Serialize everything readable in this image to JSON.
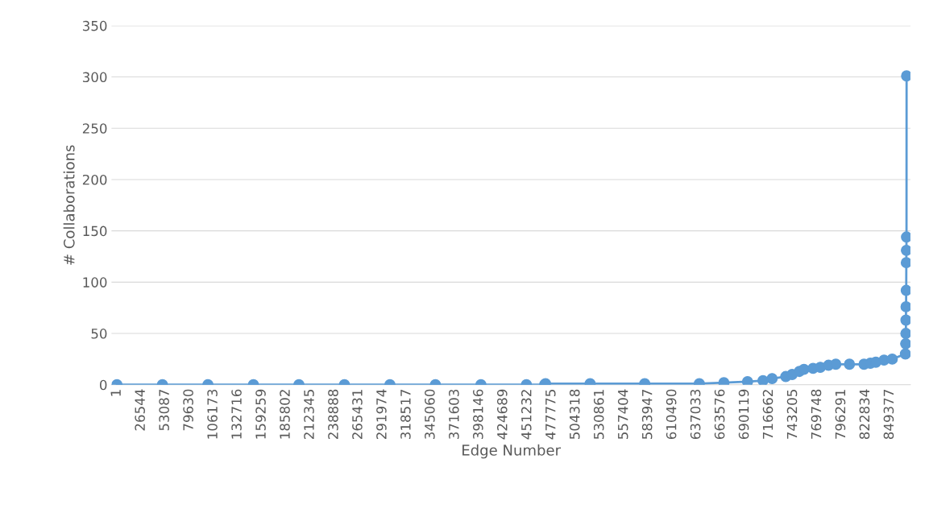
{
  "chart_data": {
    "type": "line",
    "xlabel": "Edge Number",
    "ylabel": "# Collaborations",
    "xlim": [
      -6000,
      872000
    ],
    "ylim": [
      0,
      350
    ],
    "yticks": [
      0,
      50,
      100,
      150,
      200,
      250,
      300,
      350
    ],
    "xticks": [
      1,
      26544,
      53087,
      79630,
      106173,
      132716,
      159259,
      185802,
      212345,
      238888,
      265431,
      291974,
      318517,
      345060,
      371603,
      398146,
      424689,
      451232,
      477775,
      504318,
      530861,
      557404,
      583947,
      610490,
      637033,
      663576,
      690119,
      716662,
      743205,
      769748,
      796291,
      822834,
      849377
    ],
    "grid": "y",
    "marker": "circle",
    "line_style": "solid",
    "series": [
      {
        "color": "#5b9bd5",
        "x": [
          1,
          50000,
          100000,
          150000,
          200000,
          250000,
          300000,
          350000,
          400000,
          450000,
          470000,
          471000,
          520000,
          580000,
          640000,
          667000,
          693000,
          710000,
          720000,
          735000,
          742000,
          750000,
          755000,
          765000,
          773000,
          782000,
          790000,
          805000,
          821000,
          828000,
          834000,
          843000,
          852000,
          866500,
          866800,
          867000,
          867100,
          867200,
          867400,
          867500,
          867600,
          867700,
          867800
        ],
        "values": [
          0,
          0,
          0,
          0,
          0,
          0,
          0,
          0,
          0,
          0,
          0,
          1,
          1,
          1,
          1,
          2,
          3,
          4,
          6,
          8,
          10,
          13,
          15,
          16,
          17,
          19,
          20,
          20,
          20,
          21,
          22,
          24,
          25,
          30,
          40,
          50,
          63,
          76,
          92,
          119,
          131,
          144,
          301
        ]
      }
    ]
  }
}
